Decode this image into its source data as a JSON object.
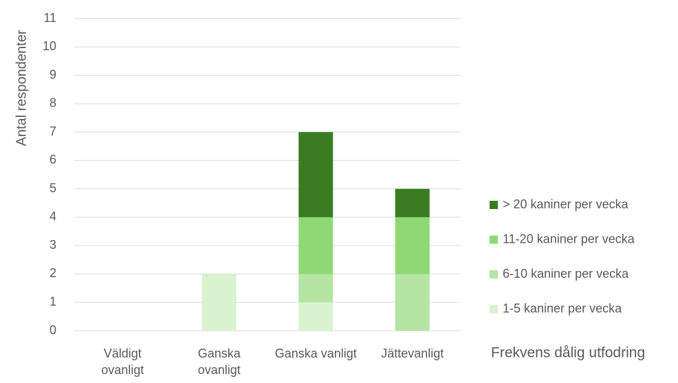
{
  "chart_data": {
    "type": "stacked_bar",
    "y_label": "Antal respondenter",
    "x_label": "Frekvens dålig utfodring",
    "categories": [
      "Väldigt ovanligt",
      "Ganska ovanligt",
      "Ganska vanligt",
      "Jättevanligt"
    ],
    "series": [
      {
        "name": "1-5 kaniner per vecka",
        "color": "#d9f2d0",
        "values": [
          0,
          2,
          1,
          0
        ]
      },
      {
        "name": "6-10 kaniner per vecka",
        "color": "#b4e5a2",
        "values": [
          0,
          0,
          1,
          2
        ]
      },
      {
        "name": "11-20 kaniner per vecka",
        "color": "#8ed973",
        "values": [
          0,
          0,
          2,
          2
        ]
      },
      {
        "name": "> 20 kaniner per vecka",
        "color": "#3a7c22",
        "values": [
          0,
          0,
          3,
          1
        ]
      }
    ],
    "ylim": [
      0,
      11
    ],
    "yticks": [
      0,
      1,
      2,
      3,
      4,
      5,
      6,
      7,
      8,
      9,
      10,
      11
    ],
    "grid": true,
    "legend": "right"
  }
}
